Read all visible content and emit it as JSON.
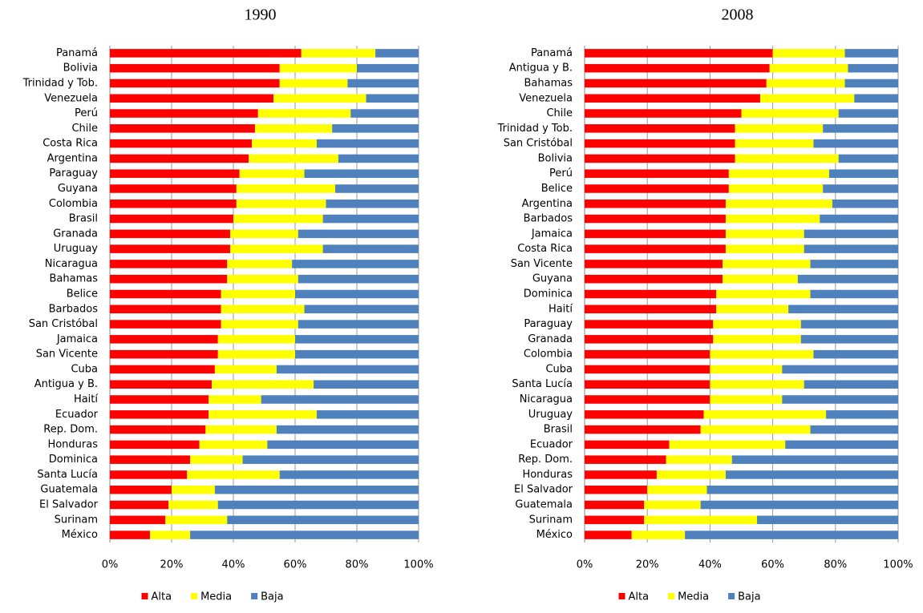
{
  "chart_data": [
    {
      "type": "stacked-bar-horizontal",
      "title": "1990",
      "categories": [
        "Panamá",
        "Bolivia",
        "Trinidad y Tob.",
        "Venezuela",
        "Perú",
        "Chile",
        "Costa Rica",
        "Argentina",
        "Paraguay",
        "Guyana",
        "Colombia",
        "Brasil",
        "Granada",
        "Uruguay",
        "Nicaragua",
        "Bahamas",
        "Belice",
        "Barbados",
        "San Cristóbal",
        "Jamaica",
        "San Vicente",
        "Cuba",
        "Antigua y B.",
        "Haití",
        "Ecuador",
        "Rep. Dom.",
        "Honduras",
        "Dominica",
        "Santa Lucía",
        "Guatemala",
        "El Salvador",
        "Surinam",
        "México"
      ],
      "series": [
        {
          "name": "Alta",
          "color": "#ff0000",
          "values": [
            62,
            55,
            55,
            53,
            48,
            47,
            46,
            45,
            42,
            41,
            41,
            40,
            39,
            39,
            38,
            38,
            36,
            36,
            36,
            35,
            35,
            34,
            33,
            32,
            32,
            31,
            29,
            26,
            25,
            20,
            19,
            18,
            13
          ]
        },
        {
          "name": "Media",
          "color": "#ffff00",
          "values": [
            24,
            25,
            22,
            30,
            30,
            25,
            21,
            29,
            21,
            32,
            29,
            29,
            22,
            30,
            21,
            23,
            24,
            27,
            25,
            25,
            25,
            20,
            33,
            17,
            35,
            23,
            22,
            17,
            30,
            14,
            16,
            20,
            13
          ]
        },
        {
          "name": "Baja",
          "color": "#4f81bd",
          "values": [
            14,
            20,
            23,
            17,
            22,
            28,
            33,
            26,
            37,
            27,
            30,
            31,
            39,
            31,
            41,
            39,
            40,
            37,
            39,
            40,
            40,
            46,
            34,
            51,
            33,
            46,
            49,
            57,
            45,
            66,
            65,
            62,
            74
          ]
        }
      ],
      "xlim": [
        0,
        100
      ],
      "xticks": [
        {
          "value": 0,
          "label": "0%"
        },
        {
          "value": 20,
          "label": "20%"
        },
        {
          "value": 40,
          "label": "40%"
        },
        {
          "value": 60,
          "label": "60%"
        },
        {
          "value": 80,
          "label": "80%"
        },
        {
          "value": 100,
          "label": "100%"
        }
      ],
      "grid": true,
      "legend": "bottom"
    },
    {
      "type": "stacked-bar-horizontal",
      "title": "2008",
      "categories": [
        "Panamá",
        "Antigua y B.",
        "Bahamas",
        "Venezuela",
        "Chile",
        "Trinidad y Tob.",
        "San Cristóbal",
        "Bolivia",
        "Perú",
        "Belice",
        "Argentina",
        "Barbados",
        "Jamaica",
        "Costa Rica",
        "San Vicente",
        "Guyana",
        "Dominica",
        "Haití",
        "Paraguay",
        "Granada",
        "Colombia",
        "Cuba",
        "Santa Lucía",
        "Nicaragua",
        "Uruguay",
        "Brasil",
        "Ecuador",
        "Rep. Dom.",
        "Honduras",
        "El Salvador",
        "Guatemala",
        "Surinam",
        "México"
      ],
      "series": [
        {
          "name": "Alta",
          "color": "#ff0000",
          "values": [
            60,
            59,
            58,
            56,
            50,
            48,
            48,
            48,
            46,
            46,
            45,
            45,
            45,
            45,
            44,
            44,
            42,
            42,
            41,
            41,
            40,
            40,
            40,
            40,
            38,
            37,
            27,
            26,
            23,
            20,
            19,
            19,
            15
          ]
        },
        {
          "name": "Media",
          "color": "#ffff00",
          "values": [
            23,
            25,
            25,
            30,
            31,
            28,
            25,
            33,
            32,
            30,
            34,
            30,
            25,
            25,
            28,
            24,
            30,
            23,
            28,
            28,
            33,
            23,
            30,
            23,
            39,
            35,
            37,
            21,
            22,
            19,
            18,
            36,
            17
          ]
        },
        {
          "name": "Baja",
          "color": "#4f81bd",
          "values": [
            17,
            16,
            17,
            14,
            19,
            24,
            27,
            19,
            22,
            24,
            21,
            25,
            30,
            30,
            28,
            32,
            28,
            35,
            31,
            31,
            27,
            37,
            30,
            37,
            23,
            28,
            36,
            53,
            55,
            61,
            63,
            45,
            68
          ]
        }
      ],
      "xlim": [
        0,
        100
      ],
      "xticks": [
        {
          "value": 0,
          "label": "0%"
        },
        {
          "value": 20,
          "label": "20%"
        },
        {
          "value": 40,
          "label": "40%"
        },
        {
          "value": 60,
          "label": "60%"
        },
        {
          "value": 80,
          "label": "80%"
        },
        {
          "value": 100,
          "label": "100%"
        }
      ],
      "grid": true,
      "legend": "bottom"
    }
  ]
}
